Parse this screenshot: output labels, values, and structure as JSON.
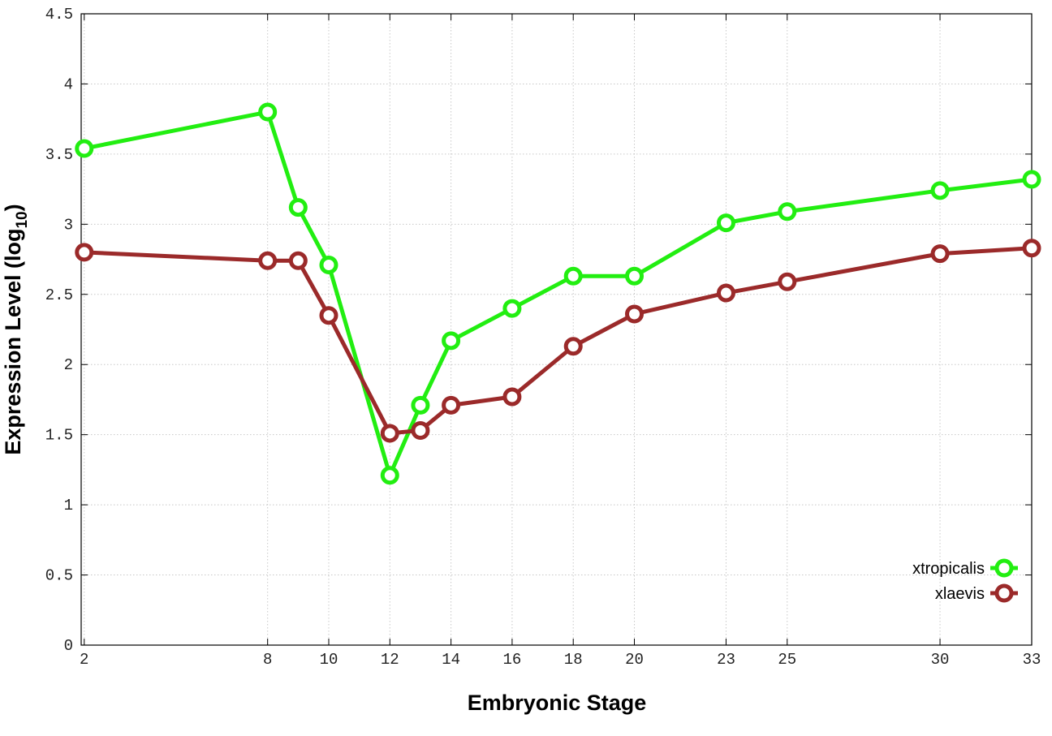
{
  "chart_data": {
    "type": "line",
    "xlabel": "Embryonic Stage",
    "ylabel": "Expression Level (log",
    "ylabel_sub": "10",
    "ylabel_end": ")",
    "x_ticks": [
      2,
      8,
      10,
      12,
      14,
      16,
      18,
      20,
      23,
      25,
      30,
      33
    ],
    "x_tick_labels": [
      "2",
      "8",
      "10",
      "12",
      "14",
      "16",
      "18",
      "20",
      "23",
      "25",
      "30",
      "33"
    ],
    "x_tick_positions": [
      2,
      8,
      10,
      12,
      14,
      16,
      18,
      20,
      23,
      25,
      30,
      33
    ],
    "y_ticks": [
      0,
      0.5,
      1,
      1.5,
      2,
      2.5,
      3,
      3.5,
      4,
      4.5
    ],
    "y_tick_labels": [
      "0",
      "0.5",
      "1",
      "1.5",
      "2",
      "2.5",
      "3",
      "3.5",
      "4",
      "4.5"
    ],
    "xlim": [
      1.9,
      33
    ],
    "ylim": [
      0,
      4.5
    ],
    "grid": true,
    "legend_position": "bottom-right",
    "series": [
      {
        "name": "xtropicalis",
        "color": "#22ee11",
        "x": [
          2,
          8,
          9,
          10,
          12,
          13,
          14,
          16,
          18,
          20,
          23,
          25,
          30,
          33
        ],
        "values": [
          3.54,
          3.8,
          3.12,
          2.71,
          1.21,
          1.71,
          2.17,
          2.4,
          2.63,
          2.63,
          3.01,
          3.09,
          3.24,
          3.32
        ]
      },
      {
        "name": "xlaevis",
        "color": "#9b2a2a",
        "x": [
          2,
          8,
          9,
          10,
          12,
          13,
          14,
          16,
          18,
          20,
          23,
          25,
          30,
          33
        ],
        "values": [
          2.8,
          2.74,
          2.74,
          2.35,
          1.51,
          1.53,
          1.71,
          1.77,
          2.13,
          2.36,
          2.51,
          2.59,
          2.79,
          2.83
        ]
      }
    ]
  }
}
